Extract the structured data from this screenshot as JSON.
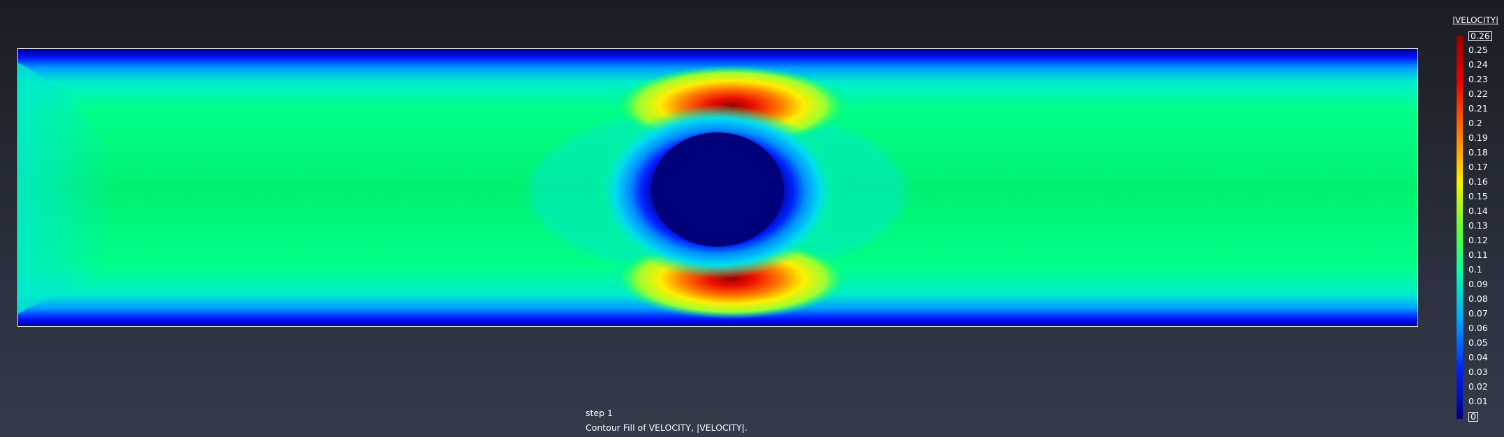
{
  "legend": {
    "title": "|VELOCITY|",
    "labels": [
      "0.26",
      "0.25",
      "0.24",
      "0.23",
      "0.22",
      "0.21",
      "0.2",
      "0.19",
      "0.18",
      "0.17",
      "0.16",
      "0.15",
      "0.14",
      "0.13",
      "0.12",
      "0.11",
      "0.1",
      "0.09",
      "0.08",
      "0.07",
      "0.06",
      "0.05",
      "0.04",
      "0.03",
      "0.02",
      "0.01",
      "0"
    ],
    "max_label": "0.26",
    "min_label": "0"
  },
  "caption": {
    "step": "step 1",
    "description": "Contour Fill of VELOCITY, |VELOCITY|."
  },
  "colors": {
    "background_top": "#1a1d24",
    "background_bottom": "#343b4a",
    "frame": "#e6e6e6",
    "scale_min": "#000080",
    "scale_mid": "#00ff66",
    "scale_max": "#990000"
  }
}
